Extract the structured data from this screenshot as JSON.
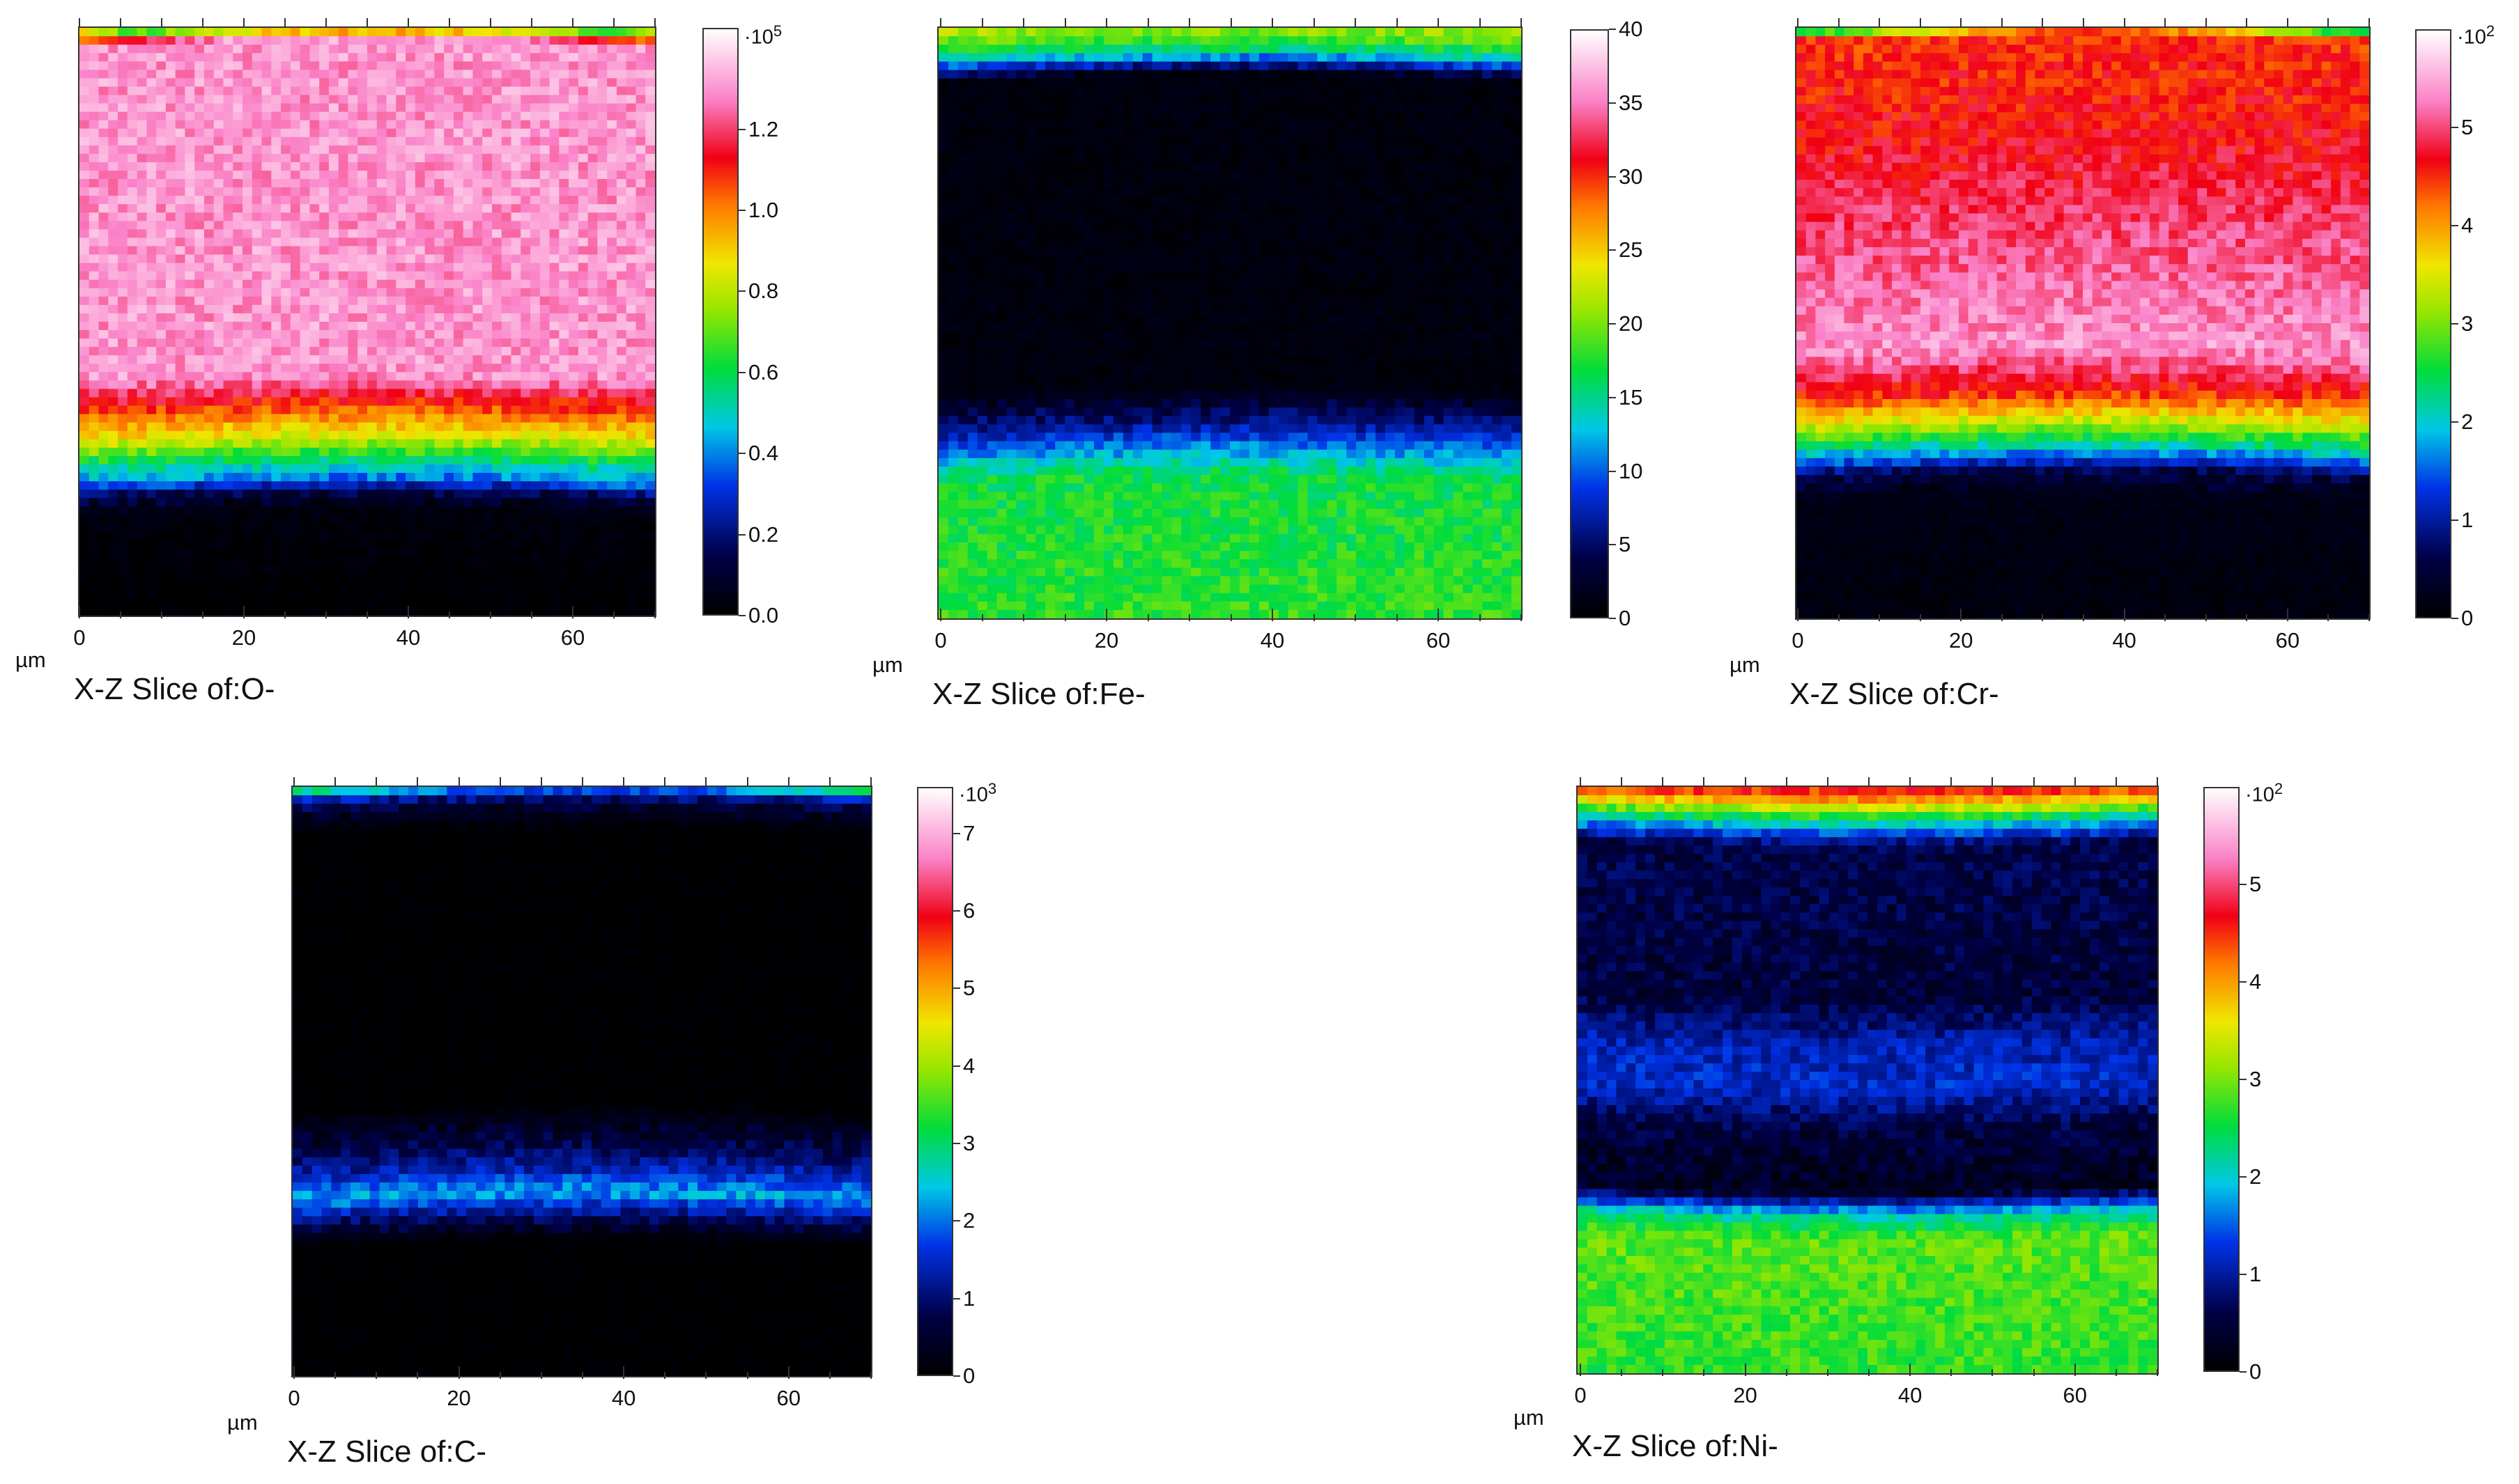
{
  "chart_data": [
    {
      "type": "heatmap",
      "title": "X-Z Slice of:O-",
      "xlabel": "µm",
      "x_ticks": [
        "0",
        "20",
        "40",
        "60"
      ],
      "x_range": [
        0,
        70
      ],
      "colorbar": {
        "ticks": [
          "0.0",
          "0.2",
          "0.4",
          "0.6",
          "0.8",
          "1.0",
          "1.2"
        ],
        "tick_values": [
          0.0,
          0.2,
          0.4,
          0.6,
          0.8,
          1.0,
          1.2
        ],
        "max": 1.45,
        "scale_label": "·10",
        "scale_exp": "5"
      },
      "depth_profile": {
        "depth_fraction": [
          0.0,
          0.01,
          0.03,
          0.6,
          0.66,
          0.7,
          0.74,
          0.78,
          0.8,
          0.83,
          1.0
        ],
        "intensity": [
          1.0,
          0.45,
          0.9,
          0.9,
          0.72,
          0.6,
          0.42,
          0.25,
          0.1,
          0.02,
          0.0
        ]
      }
    },
    {
      "type": "heatmap",
      "title": "X-Z Slice of:Fe-",
      "xlabel": "µm",
      "x_ticks": [
        "0",
        "20",
        "40",
        "60"
      ],
      "x_range": [
        0,
        70
      ],
      "colorbar": {
        "ticks": [
          "0",
          "5",
          "10",
          "15",
          "20",
          "25",
          "30",
          "35",
          "40"
        ],
        "tick_values": [
          0,
          5,
          10,
          15,
          20,
          25,
          30,
          35,
          40
        ],
        "max": 40,
        "scale_label": "",
        "scale_exp": ""
      },
      "depth_profile": {
        "depth_fraction": [
          0.0,
          0.02,
          0.05,
          0.09,
          0.62,
          0.68,
          0.73,
          0.77,
          1.0
        ],
        "intensity": [
          0.55,
          0.5,
          0.38,
          0.02,
          0.02,
          0.15,
          0.3,
          0.42,
          0.45
        ]
      }
    },
    {
      "type": "heatmap",
      "title": "X-Z Slice of:Cr-",
      "xlabel": "µm",
      "x_ticks": [
        "0",
        "20",
        "40",
        "60"
      ],
      "x_range": [
        0,
        70
      ],
      "colorbar": {
        "ticks": [
          "0",
          "1",
          "2",
          "3",
          "4",
          "5"
        ],
        "tick_values": [
          0,
          1,
          2,
          3,
          4,
          5
        ],
        "max": 6,
        "scale_label": "·10",
        "scale_exp": "2"
      },
      "depth_profile": {
        "depth_fraction": [
          0.0,
          0.01,
          0.02,
          0.2,
          0.55,
          0.63,
          0.68,
          0.72,
          0.76,
          0.8,
          1.0
        ],
        "intensity": [
          0.45,
          0.45,
          0.75,
          0.78,
          0.9,
          0.75,
          0.55,
          0.35,
          0.1,
          0.03,
          0.02
        ]
      }
    },
    {
      "type": "heatmap",
      "title": "X-Z Slice of:C-",
      "xlabel": "µm",
      "x_ticks": [
        "0",
        "20",
        "40",
        "60"
      ],
      "x_range": [
        0,
        70
      ],
      "colorbar": {
        "ticks": [
          "0",
          "1",
          "2",
          "3",
          "4",
          "5",
          "6",
          "7"
        ],
        "tick_values": [
          0,
          1,
          2,
          3,
          4,
          5,
          6,
          7
        ],
        "max": 7.6,
        "scale_label": "·10",
        "scale_exp": "3"
      },
      "depth_profile": {
        "depth_fraction": [
          0.0,
          0.01,
          0.02,
          0.04,
          0.08,
          0.55,
          0.62,
          0.66,
          0.7,
          0.74,
          0.78,
          1.0
        ],
        "intensity": [
          0.5,
          0.35,
          0.2,
          0.08,
          0.0,
          0.0,
          0.1,
          0.18,
          0.3,
          0.12,
          0.0,
          0.0
        ]
      }
    },
    {
      "type": "heatmap",
      "title": "X-Z Slice of:Ni-",
      "xlabel": "µm",
      "x_ticks": [
        "0",
        "20",
        "40",
        "60"
      ],
      "x_range": [
        0,
        70
      ],
      "colorbar": {
        "ticks": [
          "0",
          "1",
          "2",
          "3",
          "4",
          "5"
        ],
        "tick_values": [
          0,
          1,
          2,
          3,
          4,
          5
        ],
        "max": 6,
        "scale_label": "·10",
        "scale_exp": "2"
      },
      "depth_profile": {
        "depth_fraction": [
          0.0,
          0.02,
          0.05,
          0.09,
          0.35,
          0.43,
          0.5,
          0.58,
          0.68,
          0.72,
          0.76,
          0.99,
          1.0
        ],
        "intensity": [
          0.75,
          0.6,
          0.35,
          0.1,
          0.08,
          0.18,
          0.2,
          0.08,
          0.05,
          0.35,
          0.48,
          0.45,
          0.38
        ]
      }
    }
  ]
}
